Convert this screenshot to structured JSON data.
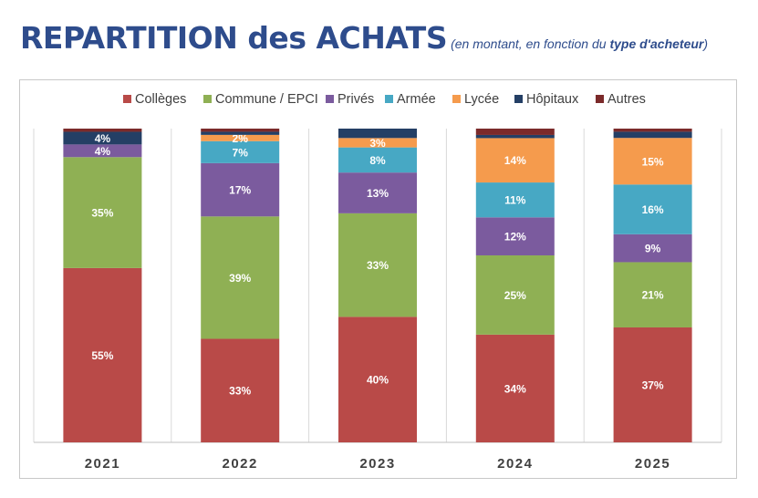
{
  "header": {
    "title": "REPARTITION des ACHATS",
    "subtitle_pre": "(en montant, en fonction du ",
    "subtitle_bold": "type d'acheteur",
    "subtitle_post": ")"
  },
  "chart_data": {
    "type": "bar",
    "stacked": true,
    "title": "REPARTITION des ACHATS",
    "subtitle": "(en montant, en fonction du type d'acheteur)",
    "categories": [
      "2021",
      "2022",
      "2023",
      "2024",
      "2025"
    ],
    "legend_position": "top",
    "series": [
      {
        "name": "Collèges",
        "color": "#b94a48",
        "values": [
          55,
          33,
          40,
          34,
          37
        ],
        "labels": [
          "55%",
          "33%",
          "40%",
          "34%",
          "37%"
        ]
      },
      {
        "name": "Commune / EPCI",
        "color": "#8fb054",
        "values": [
          35,
          39,
          33,
          25,
          21
        ],
        "labels": [
          "35%",
          "39%",
          "33%",
          "25%",
          "21%"
        ]
      },
      {
        "name": "Privés",
        "color": "#7b5b9e",
        "values": [
          4,
          17,
          13,
          12,
          9
        ],
        "labels": [
          "4%",
          "17%",
          "13%",
          "12%",
          "9%"
        ]
      },
      {
        "name": "Armée",
        "color": "#47a8c4",
        "values": [
          0,
          7,
          8,
          11,
          16
        ],
        "labels": [
          "",
          "7%",
          "8%",
          "11%",
          "16%"
        ]
      },
      {
        "name": "Lycée",
        "color": "#f59b4d",
        "values": [
          0,
          2,
          3,
          14,
          15
        ],
        "labels": [
          "",
          "2%",
          "3%",
          "14%",
          "15%"
        ]
      },
      {
        "name": "Hôpitaux",
        "color": "#243f65",
        "values": [
          4,
          1,
          3,
          1,
          2
        ],
        "labels": [
          "4%",
          "",
          "",
          "",
          ""
        ]
      },
      {
        "name": "Autres",
        "color": "#7b2a2a",
        "values": [
          1,
          1,
          0,
          2,
          1
        ],
        "labels": [
          "",
          "",
          "",
          "",
          ""
        ]
      }
    ]
  }
}
